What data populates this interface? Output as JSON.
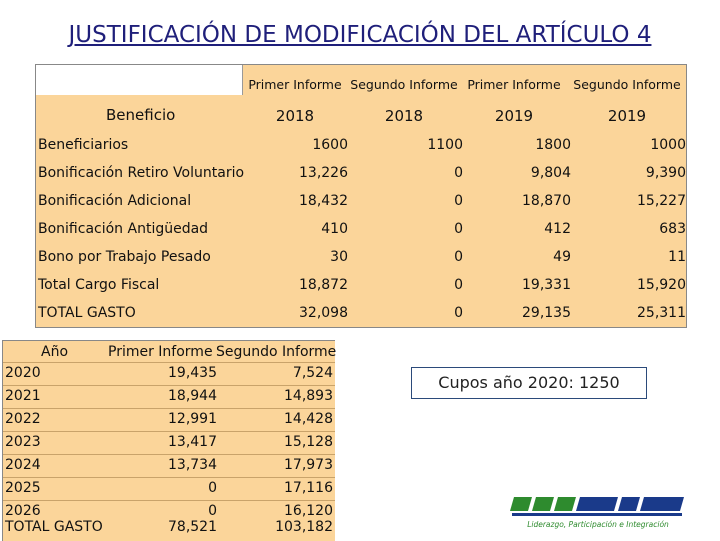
{
  "title": "JUSTIFICACIÓN DE MODIFICACIÓN DEL ARTÍCULO 4",
  "table1": {
    "header_informes": [
      "Primer Informe",
      "Segundo Informe",
      "Primer Informe",
      "Segundo Informe"
    ],
    "benefit_header": "Beneficio",
    "years": [
      "2018",
      "2018",
      "2019",
      "2019"
    ],
    "rows": [
      {
        "label": "Beneficiarios",
        "values": [
          "1600",
          "1100",
          "1800",
          "1000"
        ]
      },
      {
        "label": "Bonificación Retiro Voluntario",
        "values": [
          "13,226",
          "0",
          "9,804",
          "9,390"
        ]
      },
      {
        "label": "Bonificación Adicional",
        "values": [
          "18,432",
          "0",
          "18,870",
          "15,227"
        ]
      },
      {
        "label": "Bonificación Antigüedad",
        "values": [
          "410",
          "0",
          "412",
          "683"
        ]
      },
      {
        "label": "Bono por Trabajo Pesado",
        "values": [
          "30",
          "0",
          "49",
          "11"
        ]
      },
      {
        "label": "Total Cargo Fiscal",
        "values": [
          "18,872",
          "0",
          "19,331",
          "15,920"
        ]
      },
      {
        "label": "TOTAL GASTO",
        "values": [
          "32,098",
          "0",
          "29,135",
          "25,311"
        ]
      }
    ]
  },
  "table2": {
    "headers": [
      "Año",
      "Primer Informe",
      "Segundo Informe"
    ],
    "rows": [
      [
        "2020",
        "19,435",
        "7,524"
      ],
      [
        "2021",
        "18,944",
        "14,893"
      ],
      [
        "2022",
        "12,991",
        "14,428"
      ],
      [
        "2023",
        "13,417",
        "15,128"
      ],
      [
        "2024",
        "13,734",
        "17,973"
      ],
      [
        "2025",
        "0",
        "17,116"
      ],
      [
        "2026",
        "0",
        "16,120"
      ],
      [
        "TOTAL GASTO",
        "78,521",
        "103,182"
      ]
    ]
  },
  "cupos": "Cupos año 2020: 1250",
  "logo": {
    "text": "Liderazgo, Participación e Integración",
    "colors": [
      "#2e8b2e",
      "#1a3a8a"
    ]
  }
}
